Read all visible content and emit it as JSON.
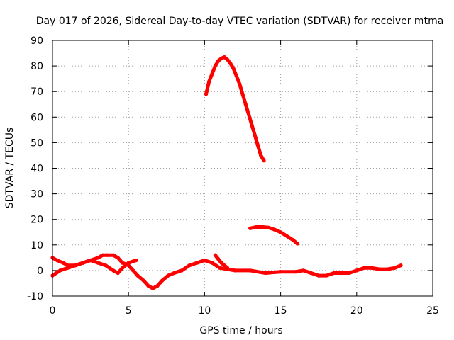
{
  "chart_data": {
    "type": "scatter",
    "title": "Day 017 of 2026, Sidereal Day-to-day VTEC variation (SDTVAR) for receiver mtma",
    "xlabel": "GPS time / hours",
    "ylabel": "SDTVAR / TECUs",
    "xlim": [
      0,
      25
    ],
    "ylim": [
      -10,
      90
    ],
    "xticks": [
      0,
      5,
      10,
      15,
      20,
      25
    ],
    "yticks": [
      -10,
      0,
      10,
      20,
      30,
      40,
      50,
      60,
      70,
      80,
      90
    ],
    "grid": true,
    "series_color": "#ff0000",
    "series": [
      {
        "name": "main",
        "x": [
          0.0,
          0.3,
          0.7,
          1.0,
          1.5,
          2.0,
          2.5,
          3.0,
          3.3,
          3.6,
          4.0,
          4.3,
          4.6,
          5.0,
          5.3,
          5.6,
          6.0,
          6.3,
          6.6,
          6.9,
          7.2,
          7.6,
          8.0,
          8.5,
          9.0,
          9.5,
          10.0,
          10.5,
          11.0,
          12.0,
          13.0,
          14.0,
          15.0,
          16.0,
          16.5,
          17.0,
          17.5,
          18.0,
          18.5,
          19.0,
          19.5,
          20.0,
          20.5,
          21.0,
          21.5,
          22.0,
          22.5,
          22.9
        ],
        "y": [
          5,
          4,
          3,
          2,
          2,
          3,
          4,
          5,
          6,
          6,
          6,
          5,
          3,
          2,
          0,
          -2,
          -4,
          -6,
          -7,
          -6,
          -4,
          -2,
          -1,
          0,
          2,
          3,
          4,
          3,
          1,
          0,
          0,
          -1,
          -0.5,
          -0.5,
          0,
          -1,
          -2,
          -2,
          -1,
          -1,
          -1,
          0,
          1,
          1,
          0.5,
          0.5,
          1,
          2
        ]
      },
      {
        "name": "wave-secondary",
        "x": [
          0.0,
          0.5,
          1.0,
          1.5,
          2.0,
          2.5,
          3.0,
          3.5,
          4.0,
          4.3,
          4.6,
          5.0,
          5.5
        ],
        "y": [
          -2,
          0,
          1,
          2,
          3,
          4,
          3,
          2,
          0,
          -1,
          1,
          3,
          4
        ]
      },
      {
        "name": "high-arc",
        "x": [
          10.1,
          10.3,
          10.5,
          10.7,
          10.9,
          11.1,
          11.3,
          11.5,
          11.7,
          11.9,
          12.1,
          12.3,
          12.5,
          12.7,
          12.9,
          13.1,
          13.3,
          13.5,
          13.7,
          13.9
        ],
        "y": [
          69,
          74,
          77,
          80,
          82,
          83,
          83.5,
          82.5,
          81,
          79,
          76,
          73,
          69,
          65,
          61,
          57,
          53,
          49,
          45,
          43
        ]
      },
      {
        "name": "mid-arc",
        "x": [
          13.0,
          13.4,
          13.8,
          14.2,
          14.6,
          15.0,
          15.4,
          15.8,
          16.1
        ],
        "y": [
          16.5,
          17,
          17,
          16.8,
          16,
          15,
          13.5,
          12,
          10.5
        ]
      },
      {
        "name": "short-segment",
        "x": [
          10.7,
          10.9,
          11.1,
          11.3,
          11.5
        ],
        "y": [
          6,
          4.5,
          3,
          2,
          1
        ]
      }
    ]
  }
}
